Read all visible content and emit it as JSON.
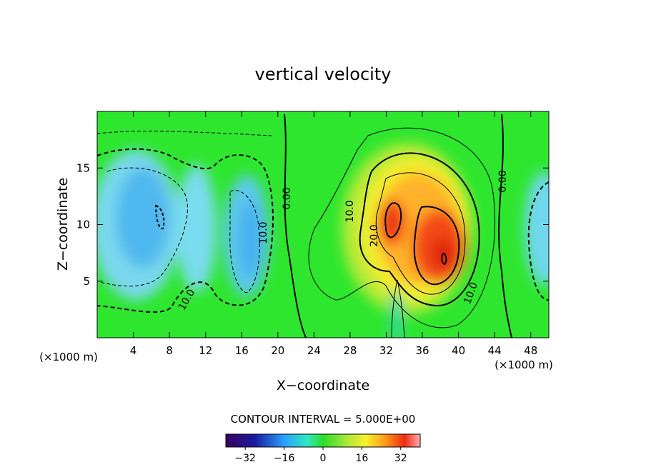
{
  "chart_data": {
    "type": "heatmap",
    "title": "vertical velocity",
    "xlabel": "X−coordinate",
    "ylabel": "Z−coordinate",
    "x_unit": "(×1000 m)",
    "y_unit": "(×1000 m)",
    "xlim": [
      0,
      50
    ],
    "ylim": [
      0,
      20
    ],
    "x_ticks": [
      4,
      8,
      12,
      16,
      20,
      24,
      28,
      32,
      36,
      40,
      44,
      48
    ],
    "y_ticks": [
      5,
      10,
      15
    ],
    "contour_interval_text": "CONTOUR INTERVAL = 5.000E+00",
    "contour_labels": [
      "0.00",
      "10.0",
      "20.0",
      "10.0",
      "10.0",
      "0.00",
      "10.0",
      "10.0"
    ],
    "colorbar": {
      "range": [
        -40,
        40
      ],
      "ticks": [
        -32,
        -16,
        0,
        16,
        32
      ],
      "tick_labels": [
        "−32",
        "−16",
        "0",
        "16",
        "32"
      ]
    },
    "features": [
      {
        "kind": "updraft",
        "x": 33,
        "z": 10.5,
        "peak": 28
      },
      {
        "kind": "updraft",
        "x": 38.5,
        "z": 7,
        "peak": 32
      },
      {
        "kind": "updraft",
        "x": 30,
        "z": 8,
        "peak": 12
      },
      {
        "kind": "downdraft",
        "x": 6,
        "z": 10,
        "peak": -22
      },
      {
        "kind": "downdraft",
        "x": 11,
        "z": 9,
        "peak": -18
      },
      {
        "kind": "downdraft",
        "x": 17,
        "z": 8.5,
        "peak": -20
      },
      {
        "kind": "downdraft",
        "x": 49,
        "z": 9,
        "peak": -14
      },
      {
        "kind": "downdraft",
        "x": 33,
        "z": 1,
        "peak": -8
      }
    ]
  }
}
